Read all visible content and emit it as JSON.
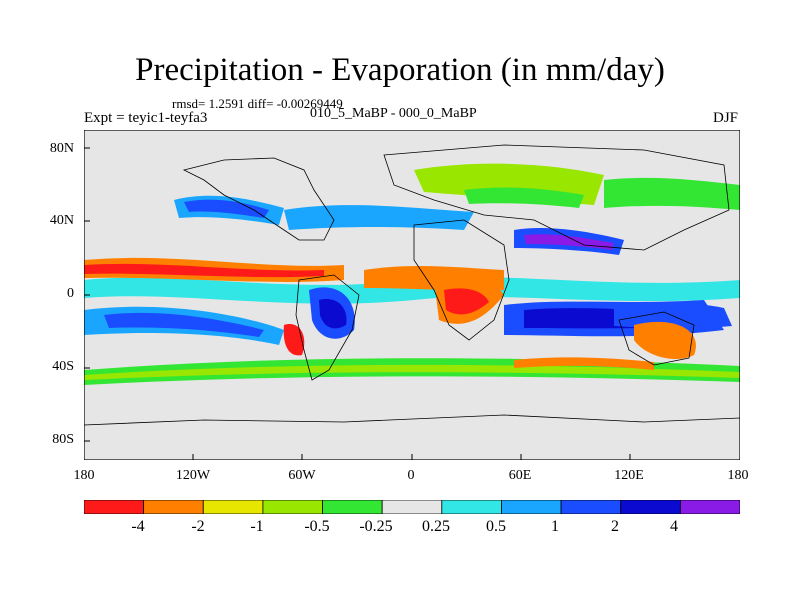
{
  "title": "Precipitation - Evaporation (in mm/day)",
  "stats": "rmsd= 1.2591  diff= -0.00269449",
  "expt": "Expt = teyic1-teyfa3",
  "subtitle": "010_5_MaBP - 000_0_MaBP",
  "season": "DJF",
  "lat_labels": [
    "80N",
    "40N",
    "0",
    "40S",
    "80S"
  ],
  "lon_labels": [
    "180",
    "120W",
    "60W",
    "0",
    "60E",
    "120E",
    "180"
  ],
  "colorbar": {
    "labels": [
      "-4",
      "-2",
      "-1",
      "-0.5",
      "-0.25",
      "0.25",
      "0.5",
      "1",
      "2",
      "4"
    ],
    "colors": [
      "#ff1a1a",
      "#ff8000",
      "#e6e600",
      "#99e600",
      "#33e633",
      "#e6e6e6",
      "#33e6e6",
      "#1aa6ff",
      "#1a4dff",
      "#0a0ad1",
      "#8a1ae6"
    ]
  },
  "palette": {
    "neutral": "#e6e6e6",
    "wet1": "#33e6e6",
    "wet2": "#1aa6ff",
    "wet3": "#1a4dff",
    "wet4": "#0a0ad1",
    "wet5": "#8a1ae6",
    "dry1": "#33e633",
    "dry2": "#99e600",
    "dry3": "#e6e600",
    "dry4": "#ff8000",
    "dry5": "#ff1a1a"
  }
}
